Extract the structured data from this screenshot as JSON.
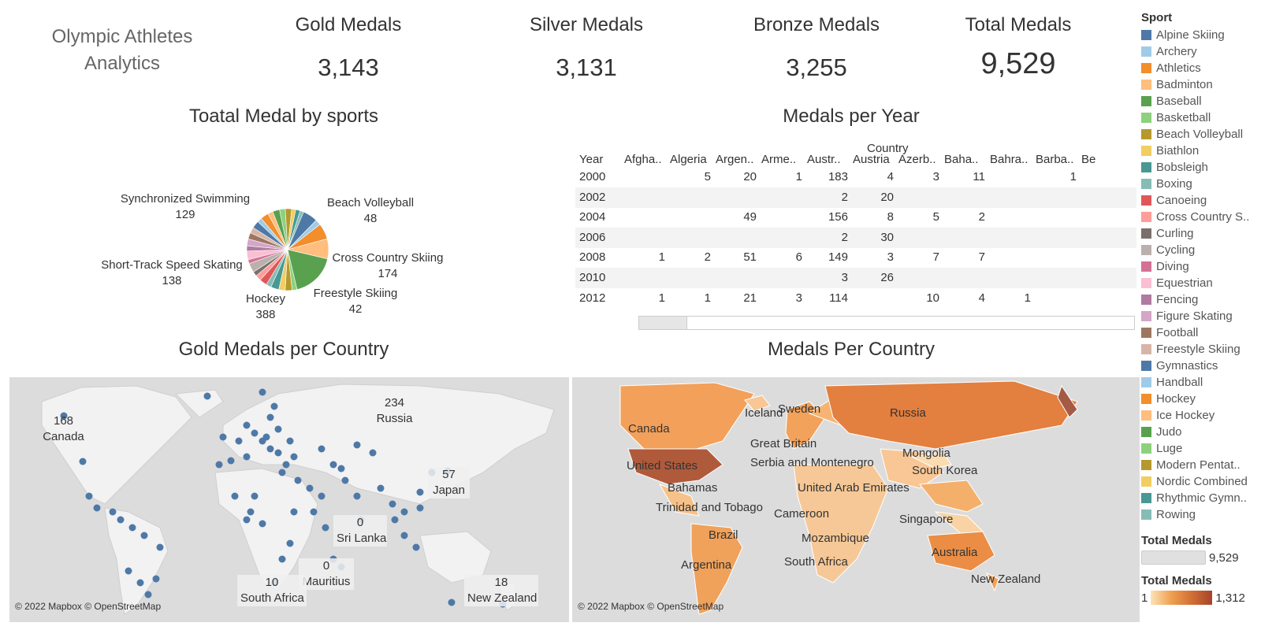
{
  "app_title": "Olympic Athletes Analytics",
  "kpis": [
    {
      "label": "Gold Medals",
      "value": "3,143"
    },
    {
      "label": "Silver Medals",
      "value": "3,131"
    },
    {
      "label": "Bronze Medals",
      "value": "3,255"
    },
    {
      "label": "Total Medals",
      "value": "9,529"
    }
  ],
  "pie": {
    "title": "Toatal Medal by sports",
    "labels": [
      {
        "name": "Synchronized Swimming",
        "value": "129"
      },
      {
        "name": "Beach Volleyball",
        "value": "48"
      },
      {
        "name": "Short-Track Speed Skating",
        "value": "138"
      },
      {
        "name": "Cross Country Skiing",
        "value": "174"
      },
      {
        "name": "Hockey",
        "value": "388"
      },
      {
        "name": "Freestyle Skiing",
        "value": "42"
      }
    ]
  },
  "chart_data": {
    "type": "pie",
    "title": "Toatal Medal by sports",
    "categories": [
      "Synchronized Swimming",
      "Beach Volleyball",
      "Short-Track Speed Skating",
      "Cross Country Skiing",
      "Hockey",
      "Freestyle Skiing"
    ],
    "values": [
      129,
      48,
      138,
      174,
      388,
      42
    ]
  },
  "table": {
    "title": "Medals per Year",
    "header_group": "Country",
    "row_header": "Year",
    "columns": [
      "Afgha..",
      "Algeria",
      "Argen..",
      "Arme..",
      "Austr..",
      "Austria",
      "Azerb..",
      "Baha..",
      "Bahra..",
      "Barba..",
      "Be"
    ],
    "rows": [
      {
        "year": "2000",
        "cells": [
          "",
          "5",
          "20",
          "1",
          "183",
          "4",
          "3",
          "11",
          "",
          "1",
          ""
        ]
      },
      {
        "year": "2002",
        "cells": [
          "",
          "",
          "",
          "",
          "2",
          "20",
          "",
          "",
          "",
          "",
          ""
        ]
      },
      {
        "year": "2004",
        "cells": [
          "",
          "",
          "49",
          "",
          "156",
          "8",
          "5",
          "2",
          "",
          "",
          ""
        ]
      },
      {
        "year": "2006",
        "cells": [
          "",
          "",
          "",
          "",
          "2",
          "30",
          "",
          "",
          "",
          "",
          ""
        ]
      },
      {
        "year": "2008",
        "cells": [
          "1",
          "2",
          "51",
          "6",
          "149",
          "3",
          "7",
          "7",
          "",
          "",
          ""
        ]
      },
      {
        "year": "2010",
        "cells": [
          "",
          "",
          "",
          "",
          "3",
          "26",
          "",
          "",
          "",
          "",
          ""
        ]
      },
      {
        "year": "2012",
        "cells": [
          "1",
          "1",
          "21",
          "3",
          "114",
          "",
          "10",
          "4",
          "1",
          "",
          ""
        ]
      }
    ]
  },
  "gold_map": {
    "title": "Gold Medals per Country",
    "attribution": "© 2022 Mapbox © OpenStreetMap",
    "labels": [
      {
        "value": "168",
        "country": "Canada"
      },
      {
        "value": "234",
        "country": "Russia"
      },
      {
        "value": "57",
        "country": "Japan"
      },
      {
        "value": "0",
        "country": "Sri Lanka"
      },
      {
        "value": "0",
        "country": "Mauritius"
      },
      {
        "value": "10",
        "country": "South Africa"
      },
      {
        "value": "18",
        "country": "New Zealand"
      }
    ]
  },
  "medal_map": {
    "title": "Medals Per Country",
    "attribution": "© 2022 Mapbox © OpenStreetMap",
    "labels": [
      "Canada",
      "Iceland",
      "Sweden",
      "Russia",
      "Great Britain",
      "United States",
      "Serbia and Montenegro",
      "Mongolia",
      "South Korea",
      "Bahamas",
      "United Arab Emirates",
      "Trinidad and Tobago",
      "Cameroon",
      "Singapore",
      "Brazil",
      "Mozambique",
      "Argentina",
      "South Africa",
      "Australia",
      "New Zealand"
    ]
  },
  "legend": {
    "title": "Sport",
    "items": [
      {
        "label": "Alpine Skiing",
        "color": "#4e79a7"
      },
      {
        "label": "Archery",
        "color": "#a0cbe8"
      },
      {
        "label": "Athletics",
        "color": "#f28e2b"
      },
      {
        "label": "Badminton",
        "color": "#ffbe7d"
      },
      {
        "label": "Baseball",
        "color": "#59a14f"
      },
      {
        "label": "Basketball",
        "color": "#8cd17d"
      },
      {
        "label": "Beach Volleyball",
        "color": "#b6992d"
      },
      {
        "label": "Biathlon",
        "color": "#f1ce63"
      },
      {
        "label": "Bobsleigh",
        "color": "#499894"
      },
      {
        "label": "Boxing",
        "color": "#86bcb6"
      },
      {
        "label": "Canoeing",
        "color": "#e15759"
      },
      {
        "label": "Cross Country S..",
        "color": "#ff9d9a"
      },
      {
        "label": "Curling",
        "color": "#79706e"
      },
      {
        "label": "Cycling",
        "color": "#bab0ac"
      },
      {
        "label": "Diving",
        "color": "#d37295"
      },
      {
        "label": "Equestrian",
        "color": "#fabfd2"
      },
      {
        "label": "Fencing",
        "color": "#b07aa1"
      },
      {
        "label": "Figure Skating",
        "color": "#d4a6c8"
      },
      {
        "label": "Football",
        "color": "#9d7660"
      },
      {
        "label": "Freestyle Skiing",
        "color": "#d7b5a6"
      },
      {
        "label": "Gymnastics",
        "color": "#4e79a7"
      },
      {
        "label": "Handball",
        "color": "#a0cbe8"
      },
      {
        "label": "Hockey",
        "color": "#f28e2b"
      },
      {
        "label": "Ice Hockey",
        "color": "#ffbe7d"
      },
      {
        "label": "Judo",
        "color": "#59a14f"
      },
      {
        "label": "Luge",
        "color": "#8cd17d"
      },
      {
        "label": "Modern Pentat..",
        "color": "#b6992d"
      },
      {
        "label": "Nordic Combined",
        "color": "#f1ce63"
      },
      {
        "label": "Rhythmic Gymn..",
        "color": "#499894"
      },
      {
        "label": "Rowing",
        "color": "#86bcb6"
      }
    ],
    "size_title": "Total Medals",
    "size_max": "9,529",
    "color_title": "Total Medals",
    "color_min": "1",
    "color_max": "1,312"
  }
}
